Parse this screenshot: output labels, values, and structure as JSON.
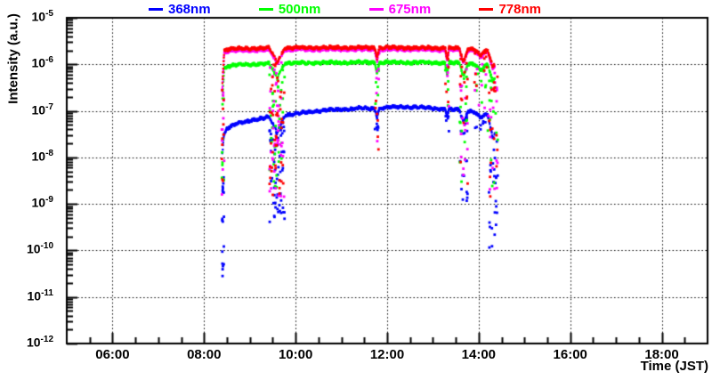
{
  "chart_data": {
    "type": "scatter",
    "title": "",
    "xlabel": "Time (JST)",
    "ylabel": "Intensity (a.u.)",
    "x_axis": {
      "range_hours": [
        5,
        19
      ],
      "major_ticks": [
        {
          "hour": 6,
          "label": "06:00"
        },
        {
          "hour": 8,
          "label": "08:00"
        },
        {
          "hour": 10,
          "label": "10:00"
        },
        {
          "hour": 12,
          "label": "12:00"
        },
        {
          "hour": 14,
          "label": "14:00"
        },
        {
          "hour": 16,
          "label": "16:00"
        },
        {
          "hour": 18,
          "label": "18:00"
        }
      ],
      "minor_tick_step_hours": 0.5,
      "grid": "dotted"
    },
    "y_axis": {
      "scale": "log",
      "exp_top": -5,
      "exp_bottom": -12,
      "label_base": "10",
      "tick_exponents": [
        -5,
        -6,
        -7,
        -8,
        -9,
        -10,
        -11,
        -12
      ],
      "grid": "dotted"
    },
    "legend": {
      "position": "top"
    },
    "data_time_span": {
      "start_hour": 8.39,
      "end_hour": 14.42
    },
    "series": [
      {
        "name": "368nm",
        "color": "#0000ff",
        "envelope": [
          [
            8.4,
            1.2e-08
          ],
          [
            8.43,
            3e-08
          ],
          [
            8.5,
            4.2e-08
          ],
          [
            8.7,
            5.2e-08
          ],
          [
            9.0,
            6.2e-08
          ],
          [
            9.3,
            7e-08
          ],
          [
            9.6,
            7.6e-08
          ],
          [
            9.9,
            8.3e-08
          ],
          [
            10.2,
            9.2e-08
          ],
          [
            10.6,
            1.02e-07
          ],
          [
            11.0,
            1.08e-07
          ],
          [
            11.4,
            1.12e-07
          ],
          [
            11.8,
            1.12e-07
          ],
          [
            12.1,
            1.2e-07
          ],
          [
            12.4,
            1.22e-07
          ],
          [
            12.8,
            1.17e-07
          ],
          [
            13.2,
            1.1e-07
          ],
          [
            13.6,
            1.04e-07
          ],
          [
            13.9,
            9.6e-08
          ],
          [
            14.1,
            8.8e-08
          ],
          [
            14.25,
            7.8e-08
          ],
          [
            14.35,
            6.5e-08
          ]
        ],
        "events": [
          {
            "t0": 8.385,
            "t1": 8.44,
            "n": 18,
            "vmin": 2e-11
          },
          {
            "t0": 9.43,
            "t1": 9.76,
            "n": 60,
            "vmin": 3e-10,
            "dip": 0.45,
            "cut": 0.55
          },
          {
            "t0": 11.73,
            "t1": 11.83,
            "n": 6,
            "vmin": 1.5e-08,
            "dip": 0.65
          },
          {
            "t0": 13.27,
            "t1": 13.35,
            "n": 5,
            "vmin": 2.5e-08,
            "dip": 0.7
          },
          {
            "t0": 13.58,
            "t1": 13.76,
            "n": 18,
            "vmin": 6e-10,
            "dip": 0.55,
            "cut": 0.3
          },
          {
            "t0": 13.9,
            "t1": 14.18,
            "n": 8,
            "vmin": 3e-08,
            "dip": 0.8
          },
          {
            "t0": 14.2,
            "t1": 14.42,
            "n": 26,
            "vmin": 8e-11,
            "dip": 0.35,
            "cut": 0.3
          }
        ]
      },
      {
        "name": "500nm",
        "color": "#00ff00",
        "envelope": [
          [
            8.4,
            2e-07
          ],
          [
            8.44,
            8e-07
          ],
          [
            8.55,
            9.2e-07
          ],
          [
            8.8,
            9.8e-07
          ],
          [
            9.2,
            1.02e-06
          ],
          [
            9.8,
            1.06e-06
          ],
          [
            10.4,
            1.08e-06
          ],
          [
            11.2,
            1.1e-06
          ],
          [
            12.0,
            1.1e-06
          ],
          [
            12.8,
            1.09e-06
          ],
          [
            13.4,
            1.07e-06
          ],
          [
            13.9,
            1.03e-06
          ],
          [
            14.15,
            9.8e-07
          ],
          [
            14.35,
            8.8e-07
          ]
        ],
        "events": [
          {
            "t0": 8.385,
            "t1": 8.44,
            "n": 9,
            "vmin": 2e-09
          },
          {
            "t0": 9.43,
            "t1": 9.76,
            "n": 40,
            "vmin": 1.2e-09,
            "dip": 0.5,
            "cut": 0.5
          },
          {
            "t0": 11.73,
            "t1": 11.83,
            "n": 5,
            "vmin": 3e-08,
            "dip": 0.6
          },
          {
            "t0": 13.27,
            "t1": 13.35,
            "n": 4,
            "vmin": 1.2e-07,
            "dip": 0.55
          },
          {
            "t0": 13.58,
            "t1": 13.76,
            "n": 14,
            "vmin": 2e-09,
            "dip": 0.5,
            "cut": 0.3
          },
          {
            "t0": 13.9,
            "t1": 14.18,
            "n": 8,
            "vmin": 1.5e-07,
            "dip": 0.75
          },
          {
            "t0": 14.2,
            "t1": 14.42,
            "n": 16,
            "vmin": 2e-09,
            "dip": 0.45,
            "cut": 0.3
          }
        ]
      },
      {
        "name": "675nm",
        "color": "#ff00ff",
        "envelope": [
          [
            8.4,
            3e-07
          ],
          [
            8.44,
            1.75e-06
          ],
          [
            8.55,
            1.95e-06
          ],
          [
            9.0,
            2e-06
          ],
          [
            9.8,
            2.05e-06
          ],
          [
            10.6,
            2.08e-06
          ],
          [
            11.5,
            2.08e-06
          ],
          [
            12.4,
            2.08e-06
          ],
          [
            13.2,
            2.05e-06
          ],
          [
            13.9,
            1.98e-06
          ],
          [
            14.2,
            1.85e-06
          ],
          [
            14.35,
            1.65e-06
          ]
        ],
        "events": [
          {
            "t0": 8.385,
            "t1": 8.44,
            "n": 10,
            "vmin": 8e-10
          },
          {
            "t0": 9.43,
            "t1": 9.76,
            "n": 45,
            "vmin": 1e-09,
            "dip": 0.5,
            "cut": 0.5
          },
          {
            "t0": 11.73,
            "t1": 11.83,
            "n": 7,
            "vmin": 6e-09,
            "dip": 0.6
          },
          {
            "t0": 13.27,
            "t1": 13.35,
            "n": 5,
            "vmin": 8e-08,
            "dip": 0.6
          },
          {
            "t0": 13.58,
            "t1": 13.76,
            "n": 15,
            "vmin": 1.5e-09,
            "dip": 0.5,
            "cut": 0.3
          },
          {
            "t0": 13.9,
            "t1": 14.18,
            "n": 9,
            "vmin": 1e-07,
            "dip": 0.75
          },
          {
            "t0": 14.2,
            "t1": 14.42,
            "n": 18,
            "vmin": 1e-09,
            "dip": 0.45,
            "cut": 0.3
          }
        ]
      },
      {
        "name": "778nm",
        "color": "#ff0000",
        "envelope": [
          [
            8.4,
            4e-07
          ],
          [
            8.44,
            1.95e-06
          ],
          [
            8.55,
            2.15e-06
          ],
          [
            9.0,
            2.2e-06
          ],
          [
            9.8,
            2.25e-06
          ],
          [
            10.6,
            2.28e-06
          ],
          [
            11.5,
            2.28e-06
          ],
          [
            12.4,
            2.28e-06
          ],
          [
            13.2,
            2.25e-06
          ],
          [
            13.9,
            2.15e-06
          ],
          [
            14.2,
            2e-06
          ],
          [
            14.35,
            1.8e-06
          ]
        ],
        "events": [
          {
            "t0": 8.385,
            "t1": 8.44,
            "n": 10,
            "vmin": 1.5e-09
          },
          {
            "t0": 9.43,
            "t1": 9.76,
            "n": 45,
            "vmin": 1.5e-09,
            "dip": 0.5,
            "cut": 0.5
          },
          {
            "t0": 11.73,
            "t1": 11.83,
            "n": 6,
            "vmin": 1e-08,
            "dip": 0.6
          },
          {
            "t0": 13.27,
            "t1": 13.35,
            "n": 5,
            "vmin": 1.5e-07,
            "dip": 0.6
          },
          {
            "t0": 13.58,
            "t1": 13.76,
            "n": 15,
            "vmin": 2e-09,
            "dip": 0.5,
            "cut": 0.3
          },
          {
            "t0": 13.9,
            "t1": 14.18,
            "n": 9,
            "vmin": 2e-07,
            "dip": 0.75
          },
          {
            "t0": 14.2,
            "t1": 14.42,
            "n": 18,
            "vmin": 1.2e-09,
            "dip": 0.45,
            "cut": 0.3
          }
        ]
      }
    ],
    "colors": {
      "frame": "#000000",
      "grid": "#000000",
      "background": "#ffffff"
    }
  }
}
